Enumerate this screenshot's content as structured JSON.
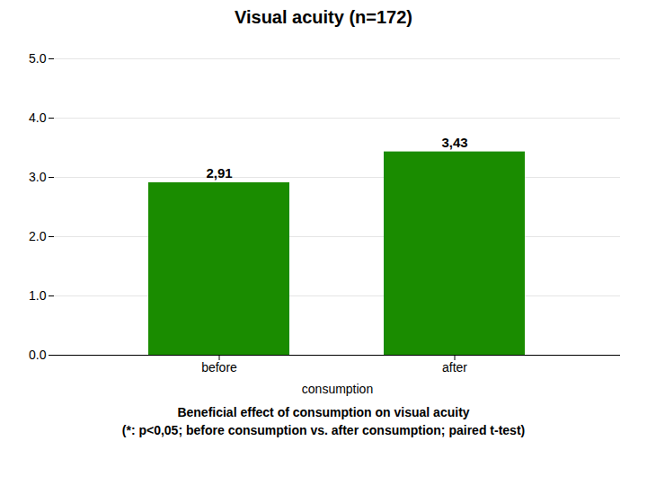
{
  "chart_data": {
    "type": "bar",
    "title": "Visual acuity (n=172)",
    "categories": [
      "before",
      "after"
    ],
    "values": [
      2.91,
      3.43
    ],
    "value_labels": [
      "2,91",
      "3,43"
    ],
    "data_labels": true,
    "color": "#1a8c00",
    "xlabel": "consumption",
    "ylim": [
      0,
      5
    ],
    "yticks": [
      0,
      1,
      2,
      3,
      4,
      5
    ],
    "grid": true,
    "annotations": [
      "Beneficial effect of consumption on visual acuity",
      "(*: p<0,05; before consumption vs. after consumption; paired t-test)"
    ]
  }
}
